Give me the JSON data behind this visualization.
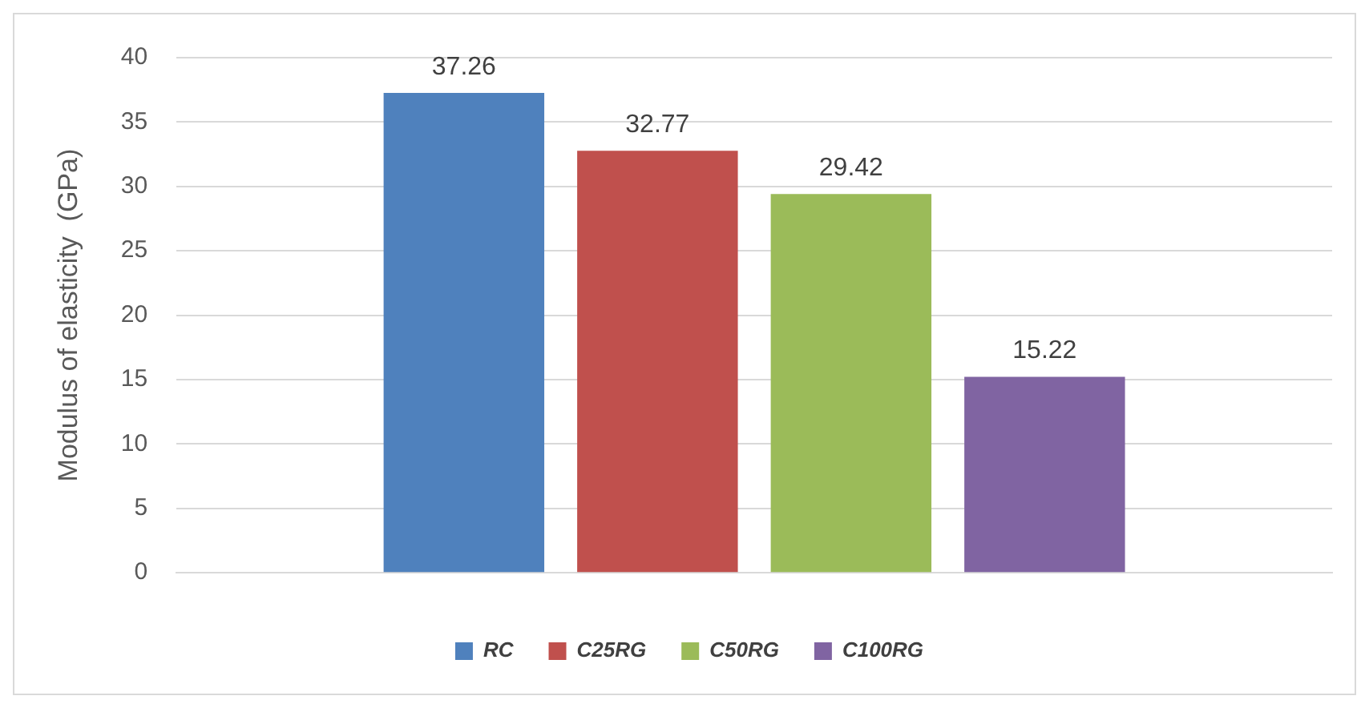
{
  "chart_data": {
    "type": "bar",
    "ylabel": "Modulus of elasticity  (GPa)",
    "categories": [
      null
    ],
    "series": [
      {
        "name": "RC",
        "color": "#4f81bd",
        "values": [
          37.26
        ]
      },
      {
        "name": "C25RG",
        "color": "#c0504d",
        "values": [
          32.77
        ]
      },
      {
        "name": "C50RG",
        "color": "#9bbb59",
        "values": [
          29.42
        ]
      },
      {
        "name": "C100RG",
        "color": "#8064a2",
        "values": [
          15.22
        ]
      }
    ],
    "ylim": [
      0,
      40
    ],
    "yticks": [
      0,
      5,
      10,
      15,
      20,
      25,
      30,
      35,
      40
    ],
    "grid": "y",
    "legend": "bottom",
    "data_labels": true
  }
}
